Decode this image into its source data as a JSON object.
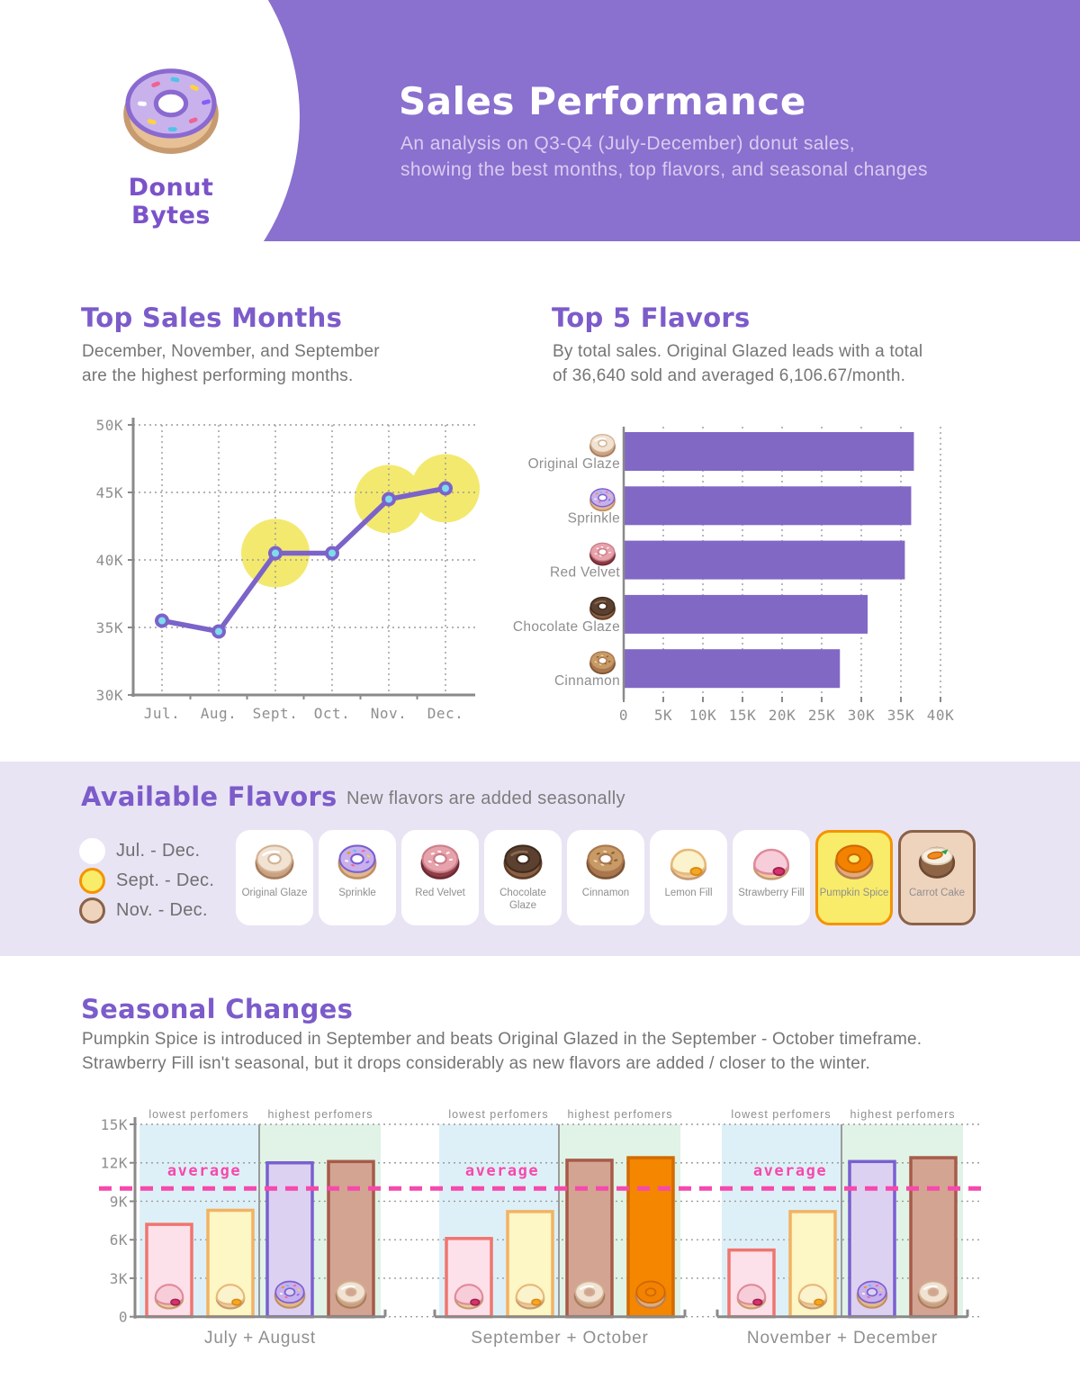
{
  "header": {
    "brand": "Donut Bytes",
    "title": "Sales Performance",
    "subtitle": [
      "An analysis on  Q3-Q4 (July-December) donut sales,",
      "showing the best months, top flavors, and seasonal changes"
    ]
  },
  "colors": {
    "header_purple": "#8a70cf",
    "heading_purple": "#7c5bca",
    "body_gray": "#757575",
    "axis_gray": "#8f8f8f",
    "accent_pink": "#f649ac",
    "bar_purple": "#8168c5",
    "line_purple": "#7b63c9",
    "marker_cyan": "#7fdbee",
    "highlight_yellow": "#f3e96e",
    "flavors_band_bg": "#e9e4f4",
    "panel_blue": "#def0f7",
    "panel_green": "#e0f3e6"
  },
  "top_sales_months": {
    "heading": "Top Sales Months",
    "description": [
      "December, November, and September",
      "are the highest performing months."
    ]
  },
  "top_5_flavors": {
    "heading": "Top 5 Flavors",
    "description": [
      "By total sales. Original Glazed leads with a total",
      "of 36,640 sold and averaged 6,106.67/month."
    ]
  },
  "available_flavors": {
    "heading": "Available Flavors",
    "subheading": "New flavors are added seasonally",
    "legend": [
      {
        "label": "Jul. - Dec.",
        "fill": "#ffffff",
        "stroke": "#ffffff"
      },
      {
        "label": "Sept. - Dec.",
        "fill": "#f8ec6a",
        "stroke": "#f59300"
      },
      {
        "label": "Nov. - Dec.",
        "fill": "#eed3bd",
        "stroke": "#8a6248"
      }
    ],
    "cards": [
      {
        "label": "Original Glaze",
        "flavor": "original-glaze",
        "bg": "#ffffff",
        "border": "#ffffff"
      },
      {
        "label": "Sprinkle",
        "flavor": "sprinkle",
        "bg": "#ffffff",
        "border": "#ffffff"
      },
      {
        "label": "Red Velvet",
        "flavor": "red-velvet",
        "bg": "#ffffff",
        "border": "#ffffff"
      },
      {
        "label": "Chocolate Glaze",
        "flavor": "chocolate-glaze",
        "bg": "#ffffff",
        "border": "#ffffff"
      },
      {
        "label": "Cinnamon",
        "flavor": "cinnamon",
        "bg": "#ffffff",
        "border": "#ffffff"
      },
      {
        "label": "Lemon Fill",
        "flavor": "lemon-fill",
        "bg": "#ffffff",
        "border": "#ffffff"
      },
      {
        "label": "Strawberry Fill",
        "flavor": "strawberry-fill",
        "bg": "#ffffff",
        "border": "#ffffff"
      },
      {
        "label": "Pumpkin Spice",
        "flavor": "pumpkin-spice",
        "bg": "#f8ec6a",
        "border": "#f59300"
      },
      {
        "label": "Carrot Cake",
        "flavor": "carrot-cake",
        "bg": "#eed3bd",
        "border": "#8a6248"
      }
    ]
  },
  "seasonal_changes": {
    "heading": "Seasonal Changes",
    "description": [
      "Pumpkin Spice is introduced in September and beats Original Glazed in the September - October timeframe.",
      "Strawberry Fill isn't seasonal, but it drops considerably as new flavors are added / closer to the winter."
    ]
  },
  "chart_data": [
    {
      "id": "monthly-sales",
      "type": "line",
      "title": "Top Sales Months",
      "x": [
        "Jul.",
        "Aug.",
        "Sept.",
        "Oct.",
        "Nov.",
        "Dec."
      ],
      "values": [
        35500,
        34700,
        40500,
        40500,
        44500,
        45300
      ],
      "highlighted_points": [
        "Sept.",
        "Nov.",
        "Dec."
      ],
      "ylim": [
        30000,
        50000
      ],
      "yticks": [
        30000,
        35000,
        40000,
        45000,
        50000
      ],
      "ytick_labels": [
        "30K",
        "35K",
        "40K",
        "45K",
        "50K"
      ],
      "grid": true,
      "legend_position": "none"
    },
    {
      "id": "top-5-flavors",
      "type": "bar",
      "orientation": "horizontal",
      "title": "Top 5 Flavors",
      "categories": [
        "Original Glaze",
        "Sprinkle",
        "Red Velvet",
        "Chocolate Glaze",
        "Cinnamon"
      ],
      "values": [
        36640,
        36300,
        35500,
        30800,
        27300
      ],
      "flavors": [
        "original-glaze",
        "sprinkle",
        "red-velvet",
        "chocolate-glaze",
        "cinnamon"
      ],
      "xlim": [
        0,
        40000
      ],
      "xticks": [
        0,
        5000,
        10000,
        15000,
        20000,
        25000,
        30000,
        35000,
        40000
      ],
      "xtick_labels": [
        "0",
        "5K",
        "10K",
        "15K",
        "20K",
        "25K",
        "30K",
        "35K",
        "40K"
      ],
      "grid": true
    },
    {
      "id": "seasonal-comparison",
      "type": "bar",
      "subtype": "grouped",
      "title": "Seasonal Changes",
      "ylim": [
        0,
        15000
      ],
      "yticks": [
        0,
        3000,
        6000,
        9000,
        12000,
        15000
      ],
      "ytick_labels": [
        "0",
        "3K",
        "6K",
        "9K",
        "12K",
        "15K"
      ],
      "average_line": 10000,
      "average_label": "average",
      "panel_labels": [
        "lowest perfomers",
        "highest perfomers"
      ],
      "groups": [
        {
          "label": "July + August",
          "lowest": [
            {
              "flavor": "Strawberry Fill",
              "value": 7200
            },
            {
              "flavor": "Lemon Fill",
              "value": 8300
            }
          ],
          "highest": [
            {
              "flavor": "Sprinkle",
              "value": 12000
            },
            {
              "flavor": "Original Glaze",
              "value": 12100
            }
          ]
        },
        {
          "label": "September + October",
          "lowest": [
            {
              "flavor": "Strawberry Fill",
              "value": 6100
            },
            {
              "flavor": "Lemon Fill",
              "value": 8200
            }
          ],
          "highest": [
            {
              "flavor": "Original Glaze",
              "value": 12200
            },
            {
              "flavor": "Pumpkin Spice",
              "value": 12400
            }
          ]
        },
        {
          "label": "November + December",
          "lowest": [
            {
              "flavor": "Strawberry Fill",
              "value": 5200
            },
            {
              "flavor": "Lemon Fill",
              "value": 8200
            }
          ],
          "highest": [
            {
              "flavor": "Sprinkle",
              "value": 12100
            },
            {
              "flavor": "Original Glaze",
              "value": 12400
            }
          ]
        }
      ],
      "bar_styles": {
        "Strawberry Fill": {
          "fill": "#fce0ea",
          "stroke": "#f0756e"
        },
        "Lemon Fill": {
          "fill": "#fdf6c5",
          "stroke": "#f2b264"
        },
        "Sprinkle": {
          "fill": "#ddd1f2",
          "stroke": "#7a5fd0"
        },
        "Original Glaze": {
          "fill": "#d3a492",
          "stroke": "#a85a48"
        },
        "Pumpkin Spice": {
          "fill": "#f48600",
          "stroke": "#d26a00"
        }
      }
    }
  ]
}
